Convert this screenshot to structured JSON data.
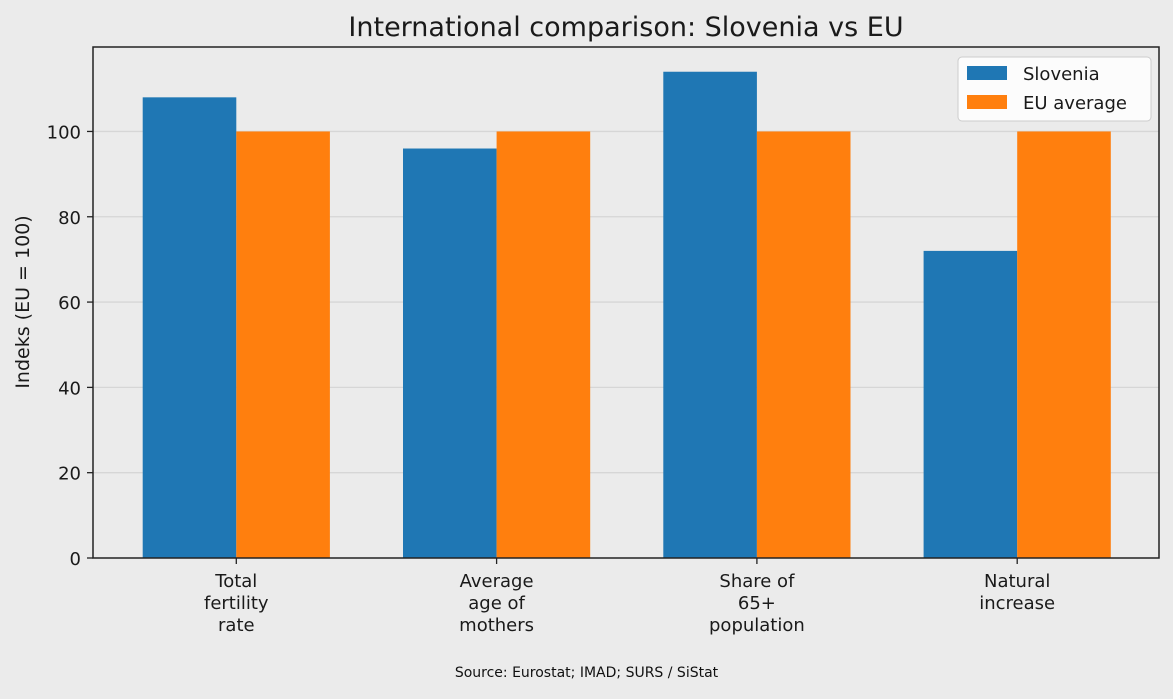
{
  "chart_data": {
    "type": "bar",
    "title": "International comparison: Slovenia vs EU",
    "xlabel": "",
    "ylabel": "Indeks (EU = 100)",
    "categories": [
      [
        "Total",
        "fertility",
        "rate"
      ],
      [
        "Average",
        "age of",
        "mothers"
      ],
      [
        "Share of",
        "65+",
        "population"
      ],
      [
        "Natural",
        "increase"
      ]
    ],
    "series": [
      {
        "name": "Slovenia",
        "color": "#1f77b4",
        "values": [
          108,
          96,
          114,
          72
        ]
      },
      {
        "name": "EU average",
        "color": "#ff7f0e",
        "values": [
          100,
          100,
          100,
          100
        ]
      }
    ],
    "ylim": [
      0,
      120
    ],
    "yticks": [
      0,
      20,
      40,
      60,
      80,
      100
    ],
    "grid": true,
    "legend": "top-right"
  },
  "source": "Source: Eurostat; IMAD; SURS / SiStat"
}
